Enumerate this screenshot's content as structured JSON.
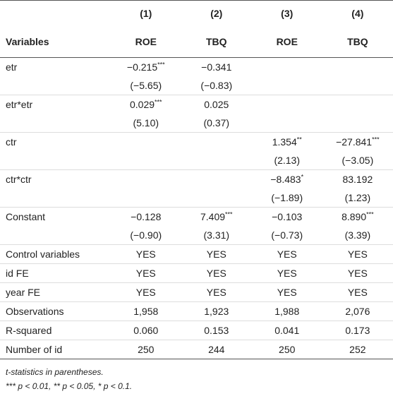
{
  "table": {
    "header": {
      "numbers": [
        "(1)",
        "(2)",
        "(3)",
        "(4)"
      ],
      "variables_label": "Variables",
      "outcomes": [
        "ROE",
        "TBQ",
        "ROE",
        "TBQ"
      ]
    },
    "rows": [
      {
        "label": "etr",
        "cells": [
          "−0.215***",
          "−0.341",
          null,
          null
        ],
        "t": [
          "(−5.65)",
          "(−0.83)",
          null,
          null
        ]
      },
      {
        "label": "etr*etr",
        "cells": [
          "0.029***",
          "0.025",
          null,
          null
        ],
        "t": [
          "(5.10)",
          "(0.37)",
          null,
          null
        ]
      },
      {
        "label": "ctr",
        "cells": [
          null,
          null,
          "1.354**",
          "−27.841***"
        ],
        "t": [
          null,
          null,
          "(2.13)",
          "(−3.05)"
        ]
      },
      {
        "label": "ctr*ctr",
        "cells": [
          null,
          null,
          "−8.483*",
          "83.192"
        ],
        "t": [
          null,
          null,
          "(−1.89)",
          "(1.23)"
        ]
      },
      {
        "label": "Constant",
        "cells": [
          "−0.128",
          "7.409***",
          "−0.103",
          "8.890***"
        ],
        "t": [
          "(−0.90)",
          "(3.31)",
          "(−0.73)",
          "(3.39)"
        ]
      },
      {
        "label": "Control variables",
        "cells": [
          "YES",
          "YES",
          "YES",
          "YES"
        ]
      },
      {
        "label": "id FE",
        "cells": [
          "YES",
          "YES",
          "YES",
          "YES"
        ]
      },
      {
        "label": "year FE",
        "cells": [
          "YES",
          "YES",
          "YES",
          "YES"
        ]
      },
      {
        "label": "Observations",
        "cells": [
          "1,958",
          "1,923",
          "1,988",
          "2,076"
        ]
      },
      {
        "label": "R-squared",
        "cells": [
          "0.060",
          "0.153",
          "0.041",
          "0.173"
        ]
      },
      {
        "label": "Number of id",
        "cells": [
          "250",
          "244",
          "250",
          "252"
        ]
      }
    ],
    "notes": [
      "t-statistics in parentheses.",
      "*** p < 0.01, ** p < 0.05, * p < 0.1."
    ]
  }
}
